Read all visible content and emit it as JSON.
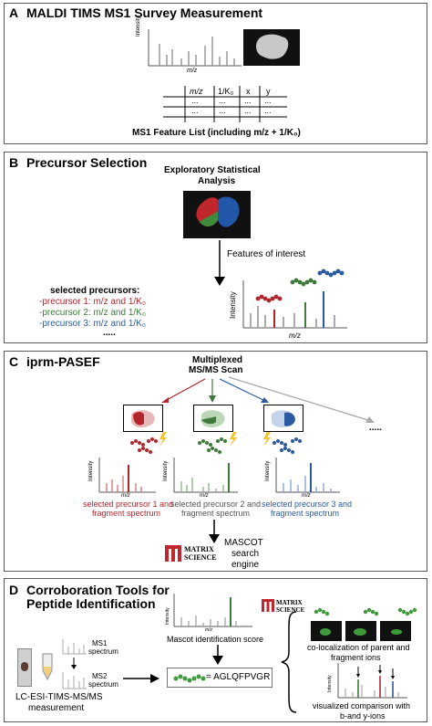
{
  "panelA": {
    "letter": "A",
    "title": "MALDI TIMS MS1 Survey Measurement",
    "y_axis": "Intensity",
    "x_axis": "m/z",
    "table_headers": [
      "m/z",
      "1/K₀",
      "x",
      "y"
    ],
    "table_cell": "...",
    "caption": "MS1 Feature List (including m/z + 1/K₀)"
  },
  "panelB": {
    "letter": "B",
    "title": "Precursor Selection",
    "analysis_label_1": "Exploratory Statistical",
    "analysis_label_2": "Analysis",
    "features_label": "Features of interest",
    "selected_title": "selected precursors:",
    "precursors": [
      "-precursor 1: m/z and 1/K₀",
      "-precursor 2: m/z and 1/K₀",
      "-precursor 3: m/z and 1/K₀"
    ],
    "ellipsis": ".....",
    "y_axis": "Intensity",
    "x_axis": "m/z",
    "colors": {
      "red": "#b2262b",
      "green": "#3f7a3a",
      "blue": "#2c5aa0"
    }
  },
  "panelC": {
    "letter": "C",
    "title": "iprm-PASEF",
    "scan_label_1": "Multiplexed",
    "scan_label_2": "MS/MS Scan",
    "ellipsis": ".....",
    "y_axis": "Intensity",
    "x_axis": "m/z",
    "captions": [
      [
        "selected precursor 1 and",
        "fragment spectrum"
      ],
      [
        "selected precursor 2 and",
        "fragment spectrum"
      ],
      [
        "selected precursor 3 and",
        "fragment spectrum"
      ]
    ],
    "matrix_logo_1": "MATRIX",
    "matrix_logo_2": "SCIENCE",
    "engine_1": "MASCOT",
    "engine_2": "search",
    "engine_3": "engine"
  },
  "panelD": {
    "letter": "D",
    "title_1": "Corroboration Tools for",
    "title_2": "Peptide Identification",
    "ms1_1": "MS1",
    "ms1_2": "spectrum",
    "ms2_1": "MS2",
    "ms2_2": "spectrum",
    "measurement_1": "LC-ESI-TIMS-MS/MS",
    "measurement_2": "measurement",
    "score_label": "Mascot identification score",
    "peptide": "= AGLQFPVGR",
    "coloc_1": "co-localization of parent and",
    "coloc_2": "fragment ions",
    "visual_1": "visualized comparison with",
    "visual_2": "b-and y-ions",
    "matrix_logo_1": "MATRIX",
    "matrix_logo_2": "SCIENCE",
    "y_axis": "Intensity",
    "x_axis": "m/z"
  }
}
